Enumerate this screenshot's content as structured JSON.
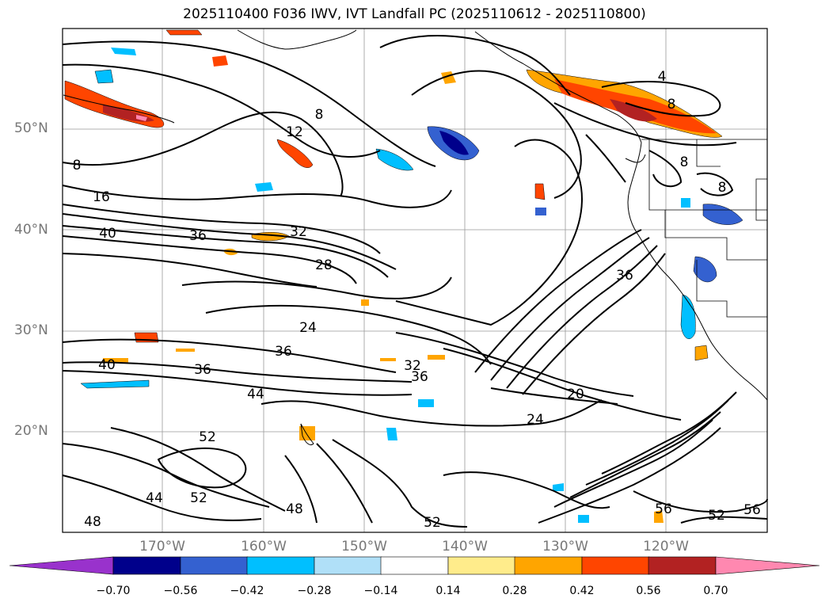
{
  "title": "2025110400 F036 IWV, IVT Landfall PC (2025110612 - 2025110800)",
  "lat_labels": [
    "50°N",
    "40°N",
    "30°N",
    "20°N"
  ],
  "lon_labels": [
    "170°W",
    "160°W",
    "150°W",
    "140°W",
    "130°W",
    "120°W"
  ],
  "colorbar": {
    "tick_labels": [
      "−0.70",
      "−0.56",
      "−0.42",
      "−0.28",
      "−0.14",
      "0.14",
      "0.28",
      "0.42",
      "0.56",
      "0.70"
    ],
    "colors": [
      "#9932cc",
      "#00008b",
      "#3461d0",
      "#00bfff",
      "#b0e0f8",
      "#ffffff",
      "#ffec8b",
      "#ffa500",
      "#ff4500",
      "#b22222",
      "#ff88b0"
    ]
  },
  "contour_labels": [
    "8",
    "12",
    "8",
    "16",
    "40",
    "36",
    "32",
    "28",
    "24",
    "36",
    "40",
    "36",
    "32",
    "36",
    "20",
    "24",
    "44",
    "52",
    "44",
    "52",
    "48",
    "48",
    "52",
    "56",
    "56",
    "52",
    "36",
    "4",
    "8",
    "8",
    "8"
  ],
  "colors": {
    "contour": "#000000",
    "grid": "#999999",
    "coast": "#000000"
  }
}
